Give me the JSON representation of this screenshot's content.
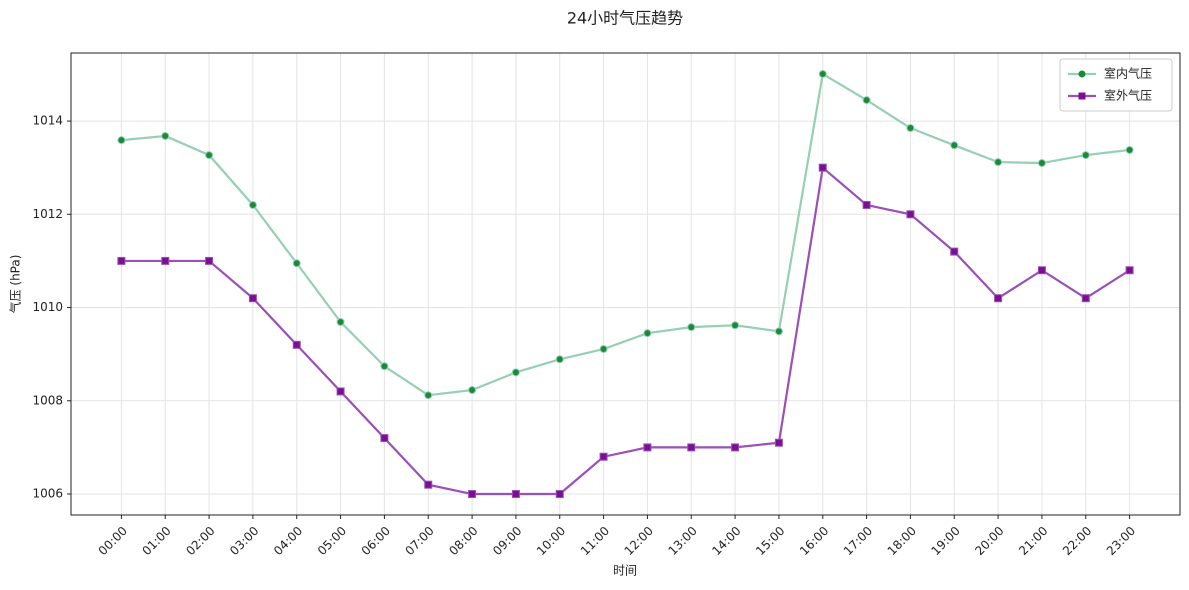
{
  "chart_data": {
    "type": "line",
    "title": "24小时气压趋势",
    "x_label": "时间",
    "y_label": "气压 (hPa)",
    "categories": [
      "00:00",
      "01:00",
      "02:00",
      "03:00",
      "04:00",
      "05:00",
      "06:00",
      "07:00",
      "08:00",
      "09:00",
      "10:00",
      "11:00",
      "12:00",
      "13:00",
      "14:00",
      "15:00",
      "16:00",
      "17:00",
      "18:00",
      "19:00",
      "20:00",
      "21:00",
      "22:00",
      "23:00"
    ],
    "series": [
      {
        "name": "室内气压",
        "color": "#96cfb4",
        "marker_color": "#1a8a3a",
        "marker": "circle",
        "values": [
          1013.59,
          1013.68,
          1013.27,
          1012.2,
          1010.95,
          1009.69,
          1008.74,
          1008.12,
          1008.23,
          1008.61,
          1008.89,
          1009.11,
          1009.45,
          1009.58,
          1009.62,
          1009.49,
          1015.01,
          1014.45,
          1013.85,
          1013.48,
          1013.12,
          1013.1,
          1013.27,
          1013.38
        ]
      },
      {
        "name": "室外气压",
        "color": "#9b4fb8",
        "marker_color": "#7a1090",
        "marker": "square",
        "values": [
          1011.0,
          1011.0,
          1011.0,
          1010.2,
          1009.2,
          1008.2,
          1007.2,
          1006.2,
          1006.0,
          1006.0,
          1006.0,
          1006.8,
          1007.0,
          1007.0,
          1007.0,
          1007.1,
          1013.0,
          1012.2,
          1012.0,
          1011.2,
          1010.2,
          1010.8,
          1010.2,
          1010.8
        ]
      }
    ],
    "ylim": [
      1005.55,
      1015.46
    ],
    "yticks": [
      1006,
      1008,
      1010,
      1012,
      1014
    ],
    "grid": true,
    "legend": "upper right"
  }
}
